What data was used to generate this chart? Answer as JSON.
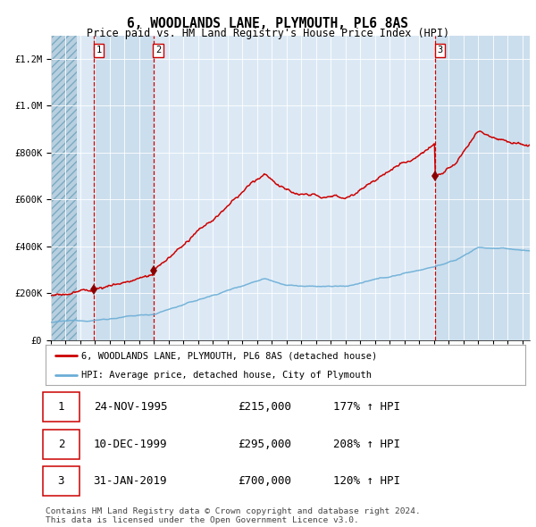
{
  "title": "6, WOODLANDS LANE, PLYMOUTH, PL6 8AS",
  "subtitle": "Price paid vs. HM Land Registry's House Price Index (HPI)",
  "legend_line1": "6, WOODLANDS LANE, PLYMOUTH, PL6 8AS (detached house)",
  "legend_line2": "HPI: Average price, detached house, City of Plymouth",
  "table": [
    {
      "num": 1,
      "date": "24-NOV-1995",
      "price": "£215,000",
      "hpi": "177% ↑ HPI"
    },
    {
      "num": 2,
      "date": "10-DEC-1999",
      "price": "£295,000",
      "hpi": "208% ↑ HPI"
    },
    {
      "num": 3,
      "date": "31-JAN-2019",
      "price": "£700,000",
      "hpi": "120% ↑ HPI"
    }
  ],
  "footer": "Contains HM Land Registry data © Crown copyright and database right 2024.\nThis data is licensed under the Open Government Licence v3.0.",
  "sale_dates": [
    1995.9,
    1999.95,
    2019.08
  ],
  "sale_prices": [
    215000,
    295000,
    700000
  ],
  "hpi_color": "#6baed6",
  "price_color": "#cc0000",
  "background_main": "#dce9f5",
  "ylim": [
    0,
    1300000
  ],
  "xlim_start": 1993.0,
  "xlim_end": 2025.5,
  "hatch_end": 1994.75
}
